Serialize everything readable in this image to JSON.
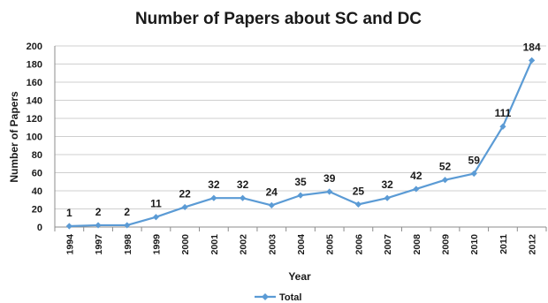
{
  "chart_data": {
    "type": "line",
    "title": "Number of Papers about SC and DC",
    "xlabel": "Year",
    "ylabel": "Number of Papers",
    "categories": [
      "1994",
      "1997",
      "1998",
      "1999",
      "2000",
      "2001",
      "2002",
      "2003",
      "2004",
      "2005",
      "2006",
      "2007",
      "2008",
      "2009",
      "2010",
      "2011",
      "2012"
    ],
    "series": [
      {
        "name": "Total",
        "values": [
          1,
          2,
          2,
          11,
          22,
          32,
          32,
          24,
          35,
          39,
          25,
          32,
          42,
          52,
          59,
          111,
          184
        ]
      }
    ],
    "ylim": [
      0,
      200
    ],
    "yticks": [
      0,
      20,
      40,
      60,
      80,
      100,
      120,
      140,
      160,
      180,
      200
    ],
    "grid": true,
    "legend_position": "bottom",
    "data_labels": true,
    "colors": {
      "series": "#5b9bd5",
      "marker": "#5b9bd5",
      "grid": "#cfcfcf",
      "axis": "#8c8c8c"
    }
  }
}
